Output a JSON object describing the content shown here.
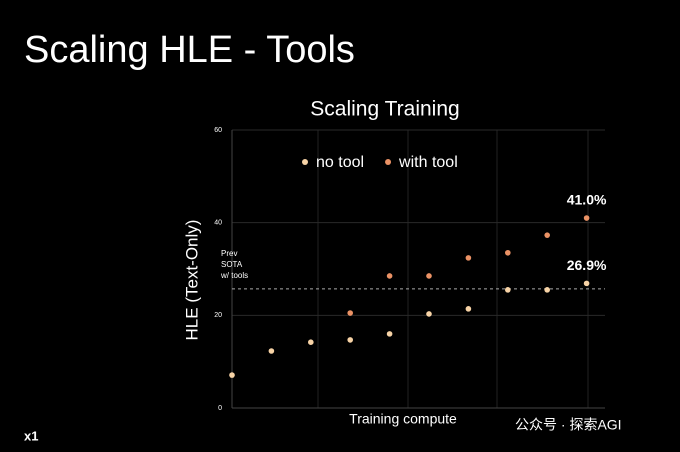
{
  "slide": {
    "title": "Scaling HLE - Tools",
    "logo": "x1",
    "watermark": "公众号 · 探索AGI"
  },
  "chart_data": {
    "type": "scatter",
    "title": "Scaling Training",
    "x_label": "Training compute",
    "y_label": "HLE (Text-Only)",
    "categories": [
      null,
      null,
      null,
      null,
      null,
      null,
      null,
      null,
      null,
      null
    ],
    "series": [
      {
        "name": "no tool",
        "color": "#f7d3a6",
        "values": [
          7.1,
          12.3,
          14.2,
          14.7,
          16.0,
          20.3,
          21.4,
          25.5,
          25.5,
          26.9
        ],
        "value_labels": [
          null,
          null,
          null,
          null,
          null,
          null,
          null,
          null,
          null,
          "26.9%"
        ]
      },
      {
        "name": "with tool",
        "color": "#eb9265",
        "values": [
          null,
          null,
          null,
          20.5,
          28.5,
          28.5,
          32.4,
          33.5,
          37.3,
          41.0
        ],
        "value_labels": [
          null,
          null,
          null,
          null,
          null,
          null,
          null,
          null,
          null,
          "41.0%"
        ]
      }
    ],
    "reference_line": {
      "value": 25.7,
      "label": [
        "Prev",
        "SOTA",
        "w/ tools"
      ]
    },
    "ylim": [
      0,
      60
    ],
    "yticks": [
      0,
      20,
      40,
      60
    ],
    "grid": true,
    "legend": "top"
  }
}
